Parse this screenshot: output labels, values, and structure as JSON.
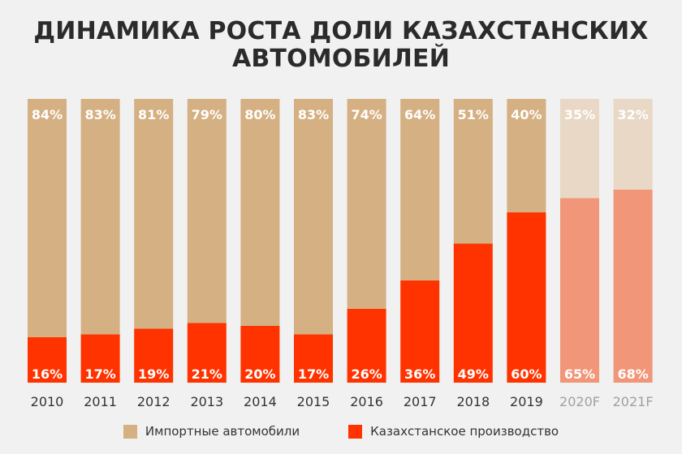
{
  "title_line1": "ДИНАМИКА РОСТА ДОЛИ КАЗАХСТАНСКИХ",
  "title_line2": "АВТОМОБИЛЕЙ",
  "colors": {
    "import": "#d4b083",
    "local": "#ff3300",
    "import_forecast": "#e8d8c5",
    "local_forecast": "#f19678",
    "axis_label": "#333333",
    "axis_label_forecast": "#a0a0a0"
  },
  "chart_data": {
    "type": "bar",
    "stacked": true,
    "categories": [
      "2010",
      "2011",
      "2012",
      "2013",
      "2014",
      "2015",
      "2016",
      "2017",
      "2018",
      "2019",
      "2020F",
      "2021F"
    ],
    "forecast_categories": [
      "2020F",
      "2021F"
    ],
    "series": [
      {
        "name": "Импортные автомобили",
        "values": [
          84,
          83,
          81,
          79,
          80,
          83,
          74,
          64,
          51,
          40,
          35,
          32
        ],
        "labels": [
          "84%",
          "83%",
          "81%",
          "79%",
          "80%",
          "83%",
          "74%",
          "64%",
          "51%",
          "40%",
          "35%",
          "32%"
        ]
      },
      {
        "name": "Казахстанское производство",
        "values": [
          16,
          17,
          19,
          21,
          20,
          17,
          26,
          36,
          49,
          60,
          65,
          68
        ],
        "labels": [
          "16%",
          "17%",
          "19%",
          "21%",
          "20%",
          "17%",
          "26%",
          "36%",
          "49%",
          "60%",
          "65%",
          "68%"
        ]
      }
    ],
    "ylim": [
      0,
      100
    ],
    "legend_position": "bottom",
    "grid": false
  },
  "legend": {
    "import_label": "Импортные автомобили",
    "local_label": "Казахстанское производство"
  }
}
